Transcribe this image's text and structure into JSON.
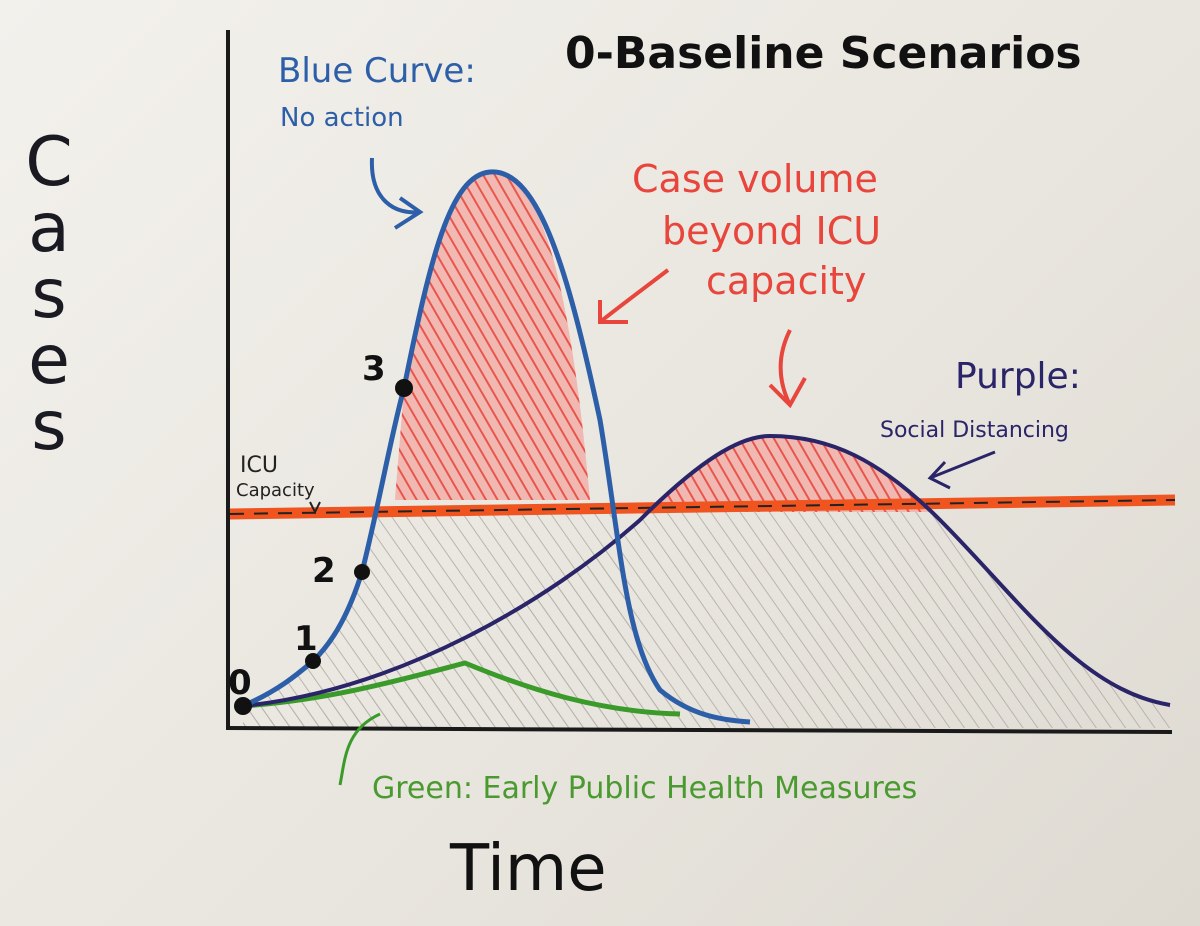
{
  "title": "0-Baseline Scenarios",
  "axes": {
    "y_label": "Cases",
    "x_label": "Time"
  },
  "annotations": {
    "blue": {
      "heading": "Blue Curve:",
      "note": "No action"
    },
    "overflow": {
      "lines": [
        "Case volume",
        "beyond ICU",
        "capacity"
      ]
    },
    "purple": {
      "heading": "Purple:",
      "note": "Social Distancing"
    },
    "icu": {
      "lines": [
        "ICU",
        "Capacity"
      ]
    },
    "green": "Green: Early Public Health Measures"
  },
  "points": [
    {
      "label": "0"
    },
    {
      "label": "1"
    },
    {
      "label": "2"
    },
    {
      "label": "3"
    }
  ]
}
